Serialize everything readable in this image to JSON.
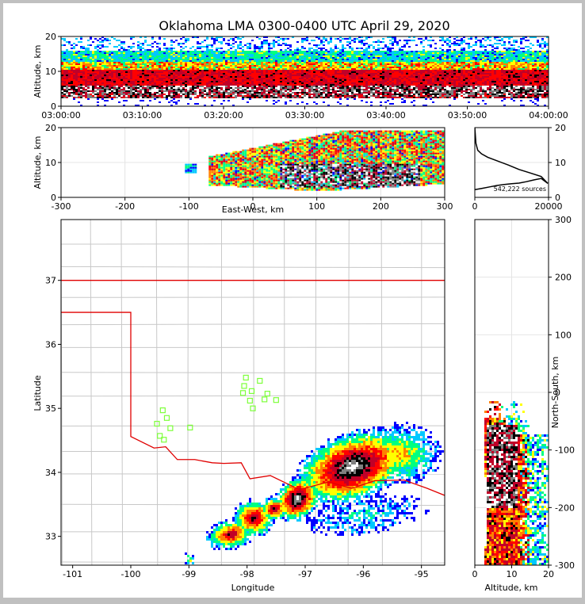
{
  "chart_data": [
    {
      "type": "heatmap",
      "panel": "altitude-time",
      "title": "Oklahoma LMA 0300-0400 UTC April 29, 2020",
      "xlabel": "",
      "ylabel": "Altitude, km",
      "xtick_labels": [
        "03:00:00",
        "03:10:00",
        "03:20:00",
        "03:30:00",
        "03:40:00",
        "03:50:00",
        "04:00:00"
      ],
      "xlim": [
        0,
        60
      ],
      "ylim": [
        0,
        20
      ],
      "yticks": [
        0,
        10,
        20
      ],
      "core_band_km": [
        4,
        10
      ],
      "grid": false
    },
    {
      "type": "heatmap",
      "panel": "altitude-east-west",
      "xlabel": "East-West, km",
      "ylabel": "Altitude, km",
      "xlim": [
        -300,
        300
      ],
      "xticks": [
        -300,
        -200,
        -100,
        0,
        100,
        200,
        300
      ],
      "ylim": [
        0,
        20
      ],
      "yticks": [
        0,
        10,
        20
      ],
      "grid": true
    },
    {
      "type": "line",
      "panel": "altitude-histogram",
      "annotation": "542,222 sources",
      "xlim": [
        0,
        20000
      ],
      "xticks": [
        0,
        20000
      ],
      "ylim": [
        0,
        20
      ],
      "yticks": [
        0,
        10,
        20
      ],
      "series": [
        {
          "x": [
            0,
            2000,
            4000,
            6000,
            8000,
            10000,
            12000,
            14000,
            16000,
            18000,
            19800,
            18000,
            15000,
            12000,
            9000,
            6000,
            3500,
            1800,
            800,
            300,
            0
          ],
          "y": [
            2.2,
            2.6,
            3.0,
            3.4,
            3.7,
            3.9,
            4.1,
            4.5,
            5.0,
            5.4,
            4.0,
            6.0,
            7.0,
            8.0,
            9.3,
            10.5,
            11.5,
            12.5,
            13.5,
            15.5,
            20
          ]
        }
      ],
      "grid": true
    },
    {
      "type": "scatter",
      "panel": "plan-view",
      "xlabel": "Longitude",
      "ylabel": "Latitude",
      "xlim": [
        -101.2,
        -94.6
      ],
      "ylim": [
        32.55,
        37.95
      ],
      "xticks": [
        -101,
        -100,
        -99,
        -98,
        -97,
        -96,
        -95
      ],
      "yticks": [
        33,
        34,
        35,
        36,
        37
      ],
      "station_color": "#7dff3a",
      "stations": [
        [
          -98.02,
          35.48
        ],
        [
          -97.78,
          35.43
        ],
        [
          -98.05,
          35.35
        ],
        [
          -97.92,
          35.27
        ],
        [
          -98.07,
          35.24
        ],
        [
          -97.65,
          35.23
        ],
        [
          -97.7,
          35.14
        ],
        [
          -97.5,
          35.13
        ],
        [
          -97.95,
          35.12
        ],
        [
          -97.9,
          35.0
        ],
        [
          -99.45,
          34.97
        ],
        [
          -99.38,
          34.85
        ],
        [
          -99.55,
          34.76
        ],
        [
          -99.32,
          34.69
        ],
        [
          -98.98,
          34.7
        ],
        [
          -99.5,
          34.57
        ],
        [
          -99.43,
          34.51
        ]
      ],
      "state_border_color": "#e00000",
      "county_color": "#c8c8c8",
      "grid": false
    },
    {
      "type": "heatmap",
      "panel": "north-south-altitude",
      "xlabel": "Altitude, km",
      "ylabel": "North-South, km",
      "xlim": [
        0,
        20
      ],
      "xticks": [
        0,
        10,
        20
      ],
      "ylim": [
        -300,
        300
      ],
      "yticks": [
        -300,
        -200,
        -100,
        0,
        100,
        200,
        300
      ],
      "grid": true
    }
  ],
  "colormap": [
    "#0000ff",
    "#00c8ff",
    "#00ff80",
    "#ffff00",
    "#ff8000",
    "#ff0000",
    "#c00028",
    "#000000",
    "#808080",
    "#ffffff"
  ]
}
